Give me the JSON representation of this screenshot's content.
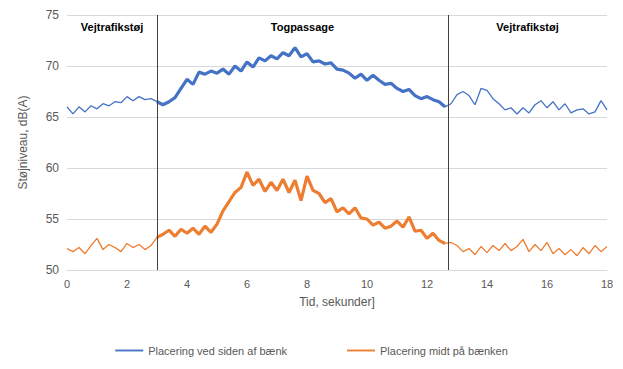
{
  "chart_data": {
    "type": "line",
    "xlabel": "Tid, sekunder]",
    "ylabel": "Støjniveau, dB(A)",
    "x": [
      0,
      0.2,
      0.4,
      0.6,
      0.8,
      1,
      1.2,
      1.4,
      1.6,
      1.8,
      2,
      2.2,
      2.4,
      2.6,
      2.8,
      3,
      3.2,
      3.4,
      3.6,
      3.8,
      4,
      4.2,
      4.4,
      4.6,
      4.8,
      5,
      5.2,
      5.4,
      5.6,
      5.8,
      6,
      6.2,
      6.4,
      6.6,
      6.8,
      7,
      7.2,
      7.4,
      7.6,
      7.8,
      8,
      8.2,
      8.4,
      8.6,
      8.8,
      9,
      9.2,
      9.4,
      9.6,
      9.8,
      10,
      10.2,
      10.4,
      10.6,
      10.8,
      11,
      11.2,
      11.4,
      11.6,
      11.8,
      12,
      12.2,
      12.4,
      12.6,
      12.8,
      13,
      13.2,
      13.4,
      13.6,
      13.8,
      14,
      14.2,
      14.4,
      14.6,
      14.8,
      15,
      15.2,
      15.4,
      15.6,
      15.8,
      16,
      16.2,
      16.4,
      16.6,
      16.8,
      17,
      17.2,
      17.4,
      17.6,
      17.8,
      18
    ],
    "series": [
      {
        "name": "Placering ved siden af bænk",
        "color": "#4472c4",
        "values": [
          66,
          65.3,
          66,
          65.5,
          66.1,
          65.8,
          66.3,
          66.1,
          66.5,
          66.4,
          67,
          66.6,
          67,
          66.7,
          66.8,
          66.5,
          66.2,
          66.5,
          66.9,
          67.8,
          68.7,
          68.2,
          69.4,
          69.2,
          69.5,
          69.3,
          69.7,
          69.2,
          70,
          69.5,
          70.4,
          69.9,
          70.8,
          70.5,
          71,
          70.7,
          71.3,
          71,
          71.8,
          70.9,
          71.2,
          70.4,
          70.5,
          70.2,
          70.3,
          69.7,
          69.6,
          69.3,
          68.8,
          69.2,
          68.6,
          69.1,
          68.6,
          68.2,
          68.3,
          67.8,
          67.5,
          67.7,
          67.1,
          66.8,
          67,
          66.7,
          66.5,
          66,
          66.3,
          67.2,
          67.5,
          67.1,
          66.2,
          67.8,
          67.6,
          66.8,
          66.3,
          65.7,
          65.9,
          65.3,
          65.9,
          65.4,
          66.2,
          66.6,
          65.9,
          66.5,
          65.7,
          66.3,
          65.4,
          65.7,
          65.8,
          65.3,
          65.5,
          66.6,
          65.7
        ]
      },
      {
        "name": "Placering midt på bænken",
        "color": "#ed7d31",
        "values": [
          52.1,
          51.8,
          52.2,
          51.6,
          52.4,
          53.1,
          52,
          52.5,
          52.2,
          51.8,
          52.6,
          52.2,
          52.5,
          52,
          52.4,
          53.2,
          53.5,
          53.9,
          53.3,
          54,
          53.6,
          54.1,
          53.5,
          54.3,
          53.7,
          54.5,
          55.8,
          56.7,
          57.6,
          58.1,
          59.6,
          58.3,
          58.9,
          57.7,
          58.6,
          57.8,
          58.9,
          57.6,
          58.8,
          56.8,
          59.2,
          57.8,
          57.5,
          56.6,
          57,
          55.7,
          56.1,
          55.5,
          56.1,
          55.1,
          55,
          54.4,
          54.7,
          54.1,
          54.3,
          54.8,
          54.2,
          55.2,
          53.8,
          53.9,
          53.1,
          53.6,
          52.9,
          52.6,
          52.7,
          52.4,
          51.8,
          52.1,
          51.5,
          52.3,
          51.7,
          52.4,
          51.9,
          52.6,
          51.9,
          52.3,
          53,
          51.8,
          52.5,
          51.9,
          52.7,
          51.6,
          52.1,
          51.5,
          52,
          51.4,
          52.2,
          51.6,
          52.4,
          51.8,
          52.3
        ]
      }
    ],
    "regions": [
      {
        "label": "Vejtrafikstøj",
        "x": [
          0,
          3
        ],
        "line_style": "thin"
      },
      {
        "label": "Togpassage",
        "x": [
          3,
          12.7
        ],
        "line_style": "thick"
      },
      {
        "label": "Vejtrafikstøj",
        "x": [
          12.7,
          18
        ],
        "line_style": "thin"
      }
    ],
    "xlim": [
      0,
      18
    ],
    "xticks": [
      0,
      2,
      4,
      6,
      8,
      10,
      12,
      14,
      16,
      18
    ],
    "ylim": [
      50,
      75
    ],
    "yticks": [
      50,
      55,
      60,
      65,
      70,
      75
    ],
    "grid": true,
    "legend": "bottom"
  }
}
